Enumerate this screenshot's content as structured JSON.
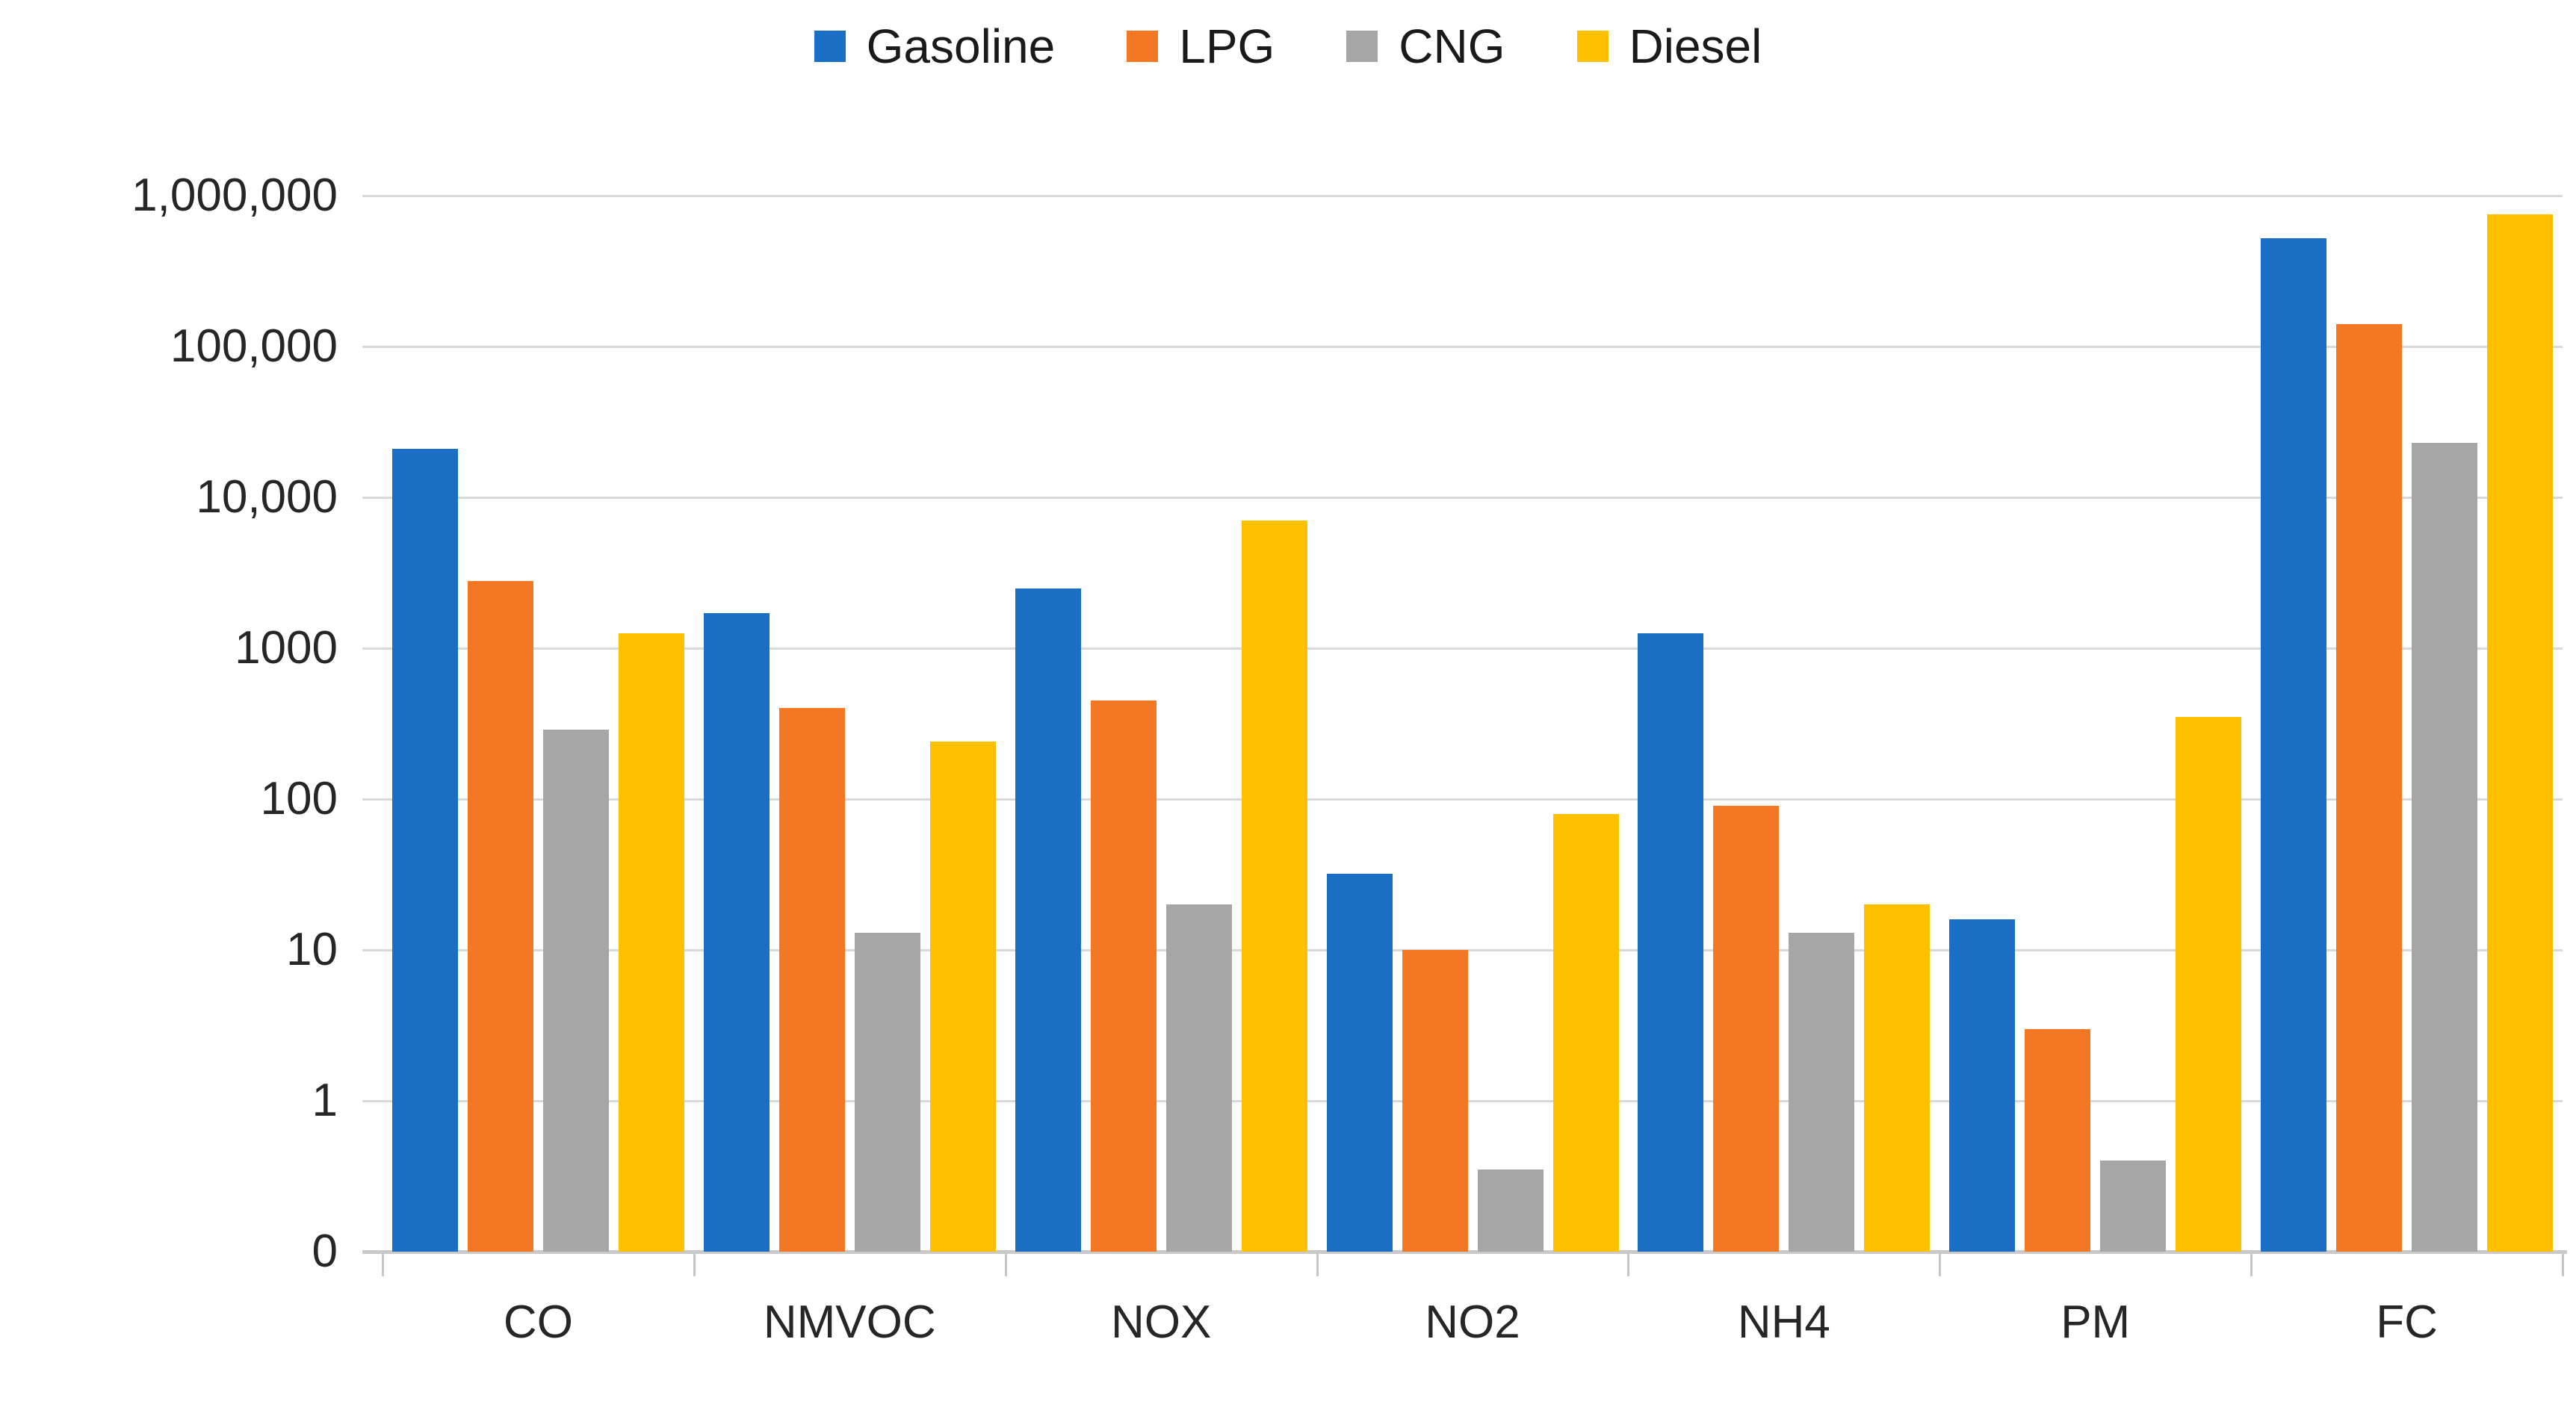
{
  "chart_data": {
    "type": "bar",
    "title": "",
    "xlabel": "",
    "ylabel": "",
    "y_scale": "log",
    "y_min": 0.1,
    "y_max": 1000000,
    "gridlines": "horizontal",
    "legend_position": "top",
    "categories": [
      "CO",
      "NMVOC",
      "NOX",
      "NO2",
      "NH4",
      "PM",
      "FC"
    ],
    "series": [
      {
        "name": "Gasoline",
        "color": "#1A6FC4",
        "values": [
          21000,
          1700,
          2500,
          32,
          1250,
          16,
          520000
        ]
      },
      {
        "name": "LPG",
        "color": "#F47723",
        "values": [
          2800,
          400,
          450,
          10,
          90,
          3,
          140000
        ]
      },
      {
        "name": "CNG",
        "color": "#A6A6A6",
        "values": [
          290,
          13,
          20,
          0.35,
          13,
          0.4,
          23000
        ]
      },
      {
        "name": "Diesel",
        "color": "#FFC000",
        "values": [
          1250,
          240,
          7000,
          80,
          20,
          350,
          750000
        ]
      }
    ],
    "y_axis_ticks": [
      {
        "label": "1,000,000",
        "value": 1000000
      },
      {
        "label": "100,000",
        "value": 100000
      },
      {
        "label": "10,000",
        "value": 10000
      },
      {
        "label": "1000",
        "value": 1000
      },
      {
        "label": "100",
        "value": 100
      },
      {
        "label": "10",
        "value": 10
      },
      {
        "label": "1",
        "value": 1
      },
      {
        "label": "0",
        "value": 0.1
      }
    ]
  }
}
